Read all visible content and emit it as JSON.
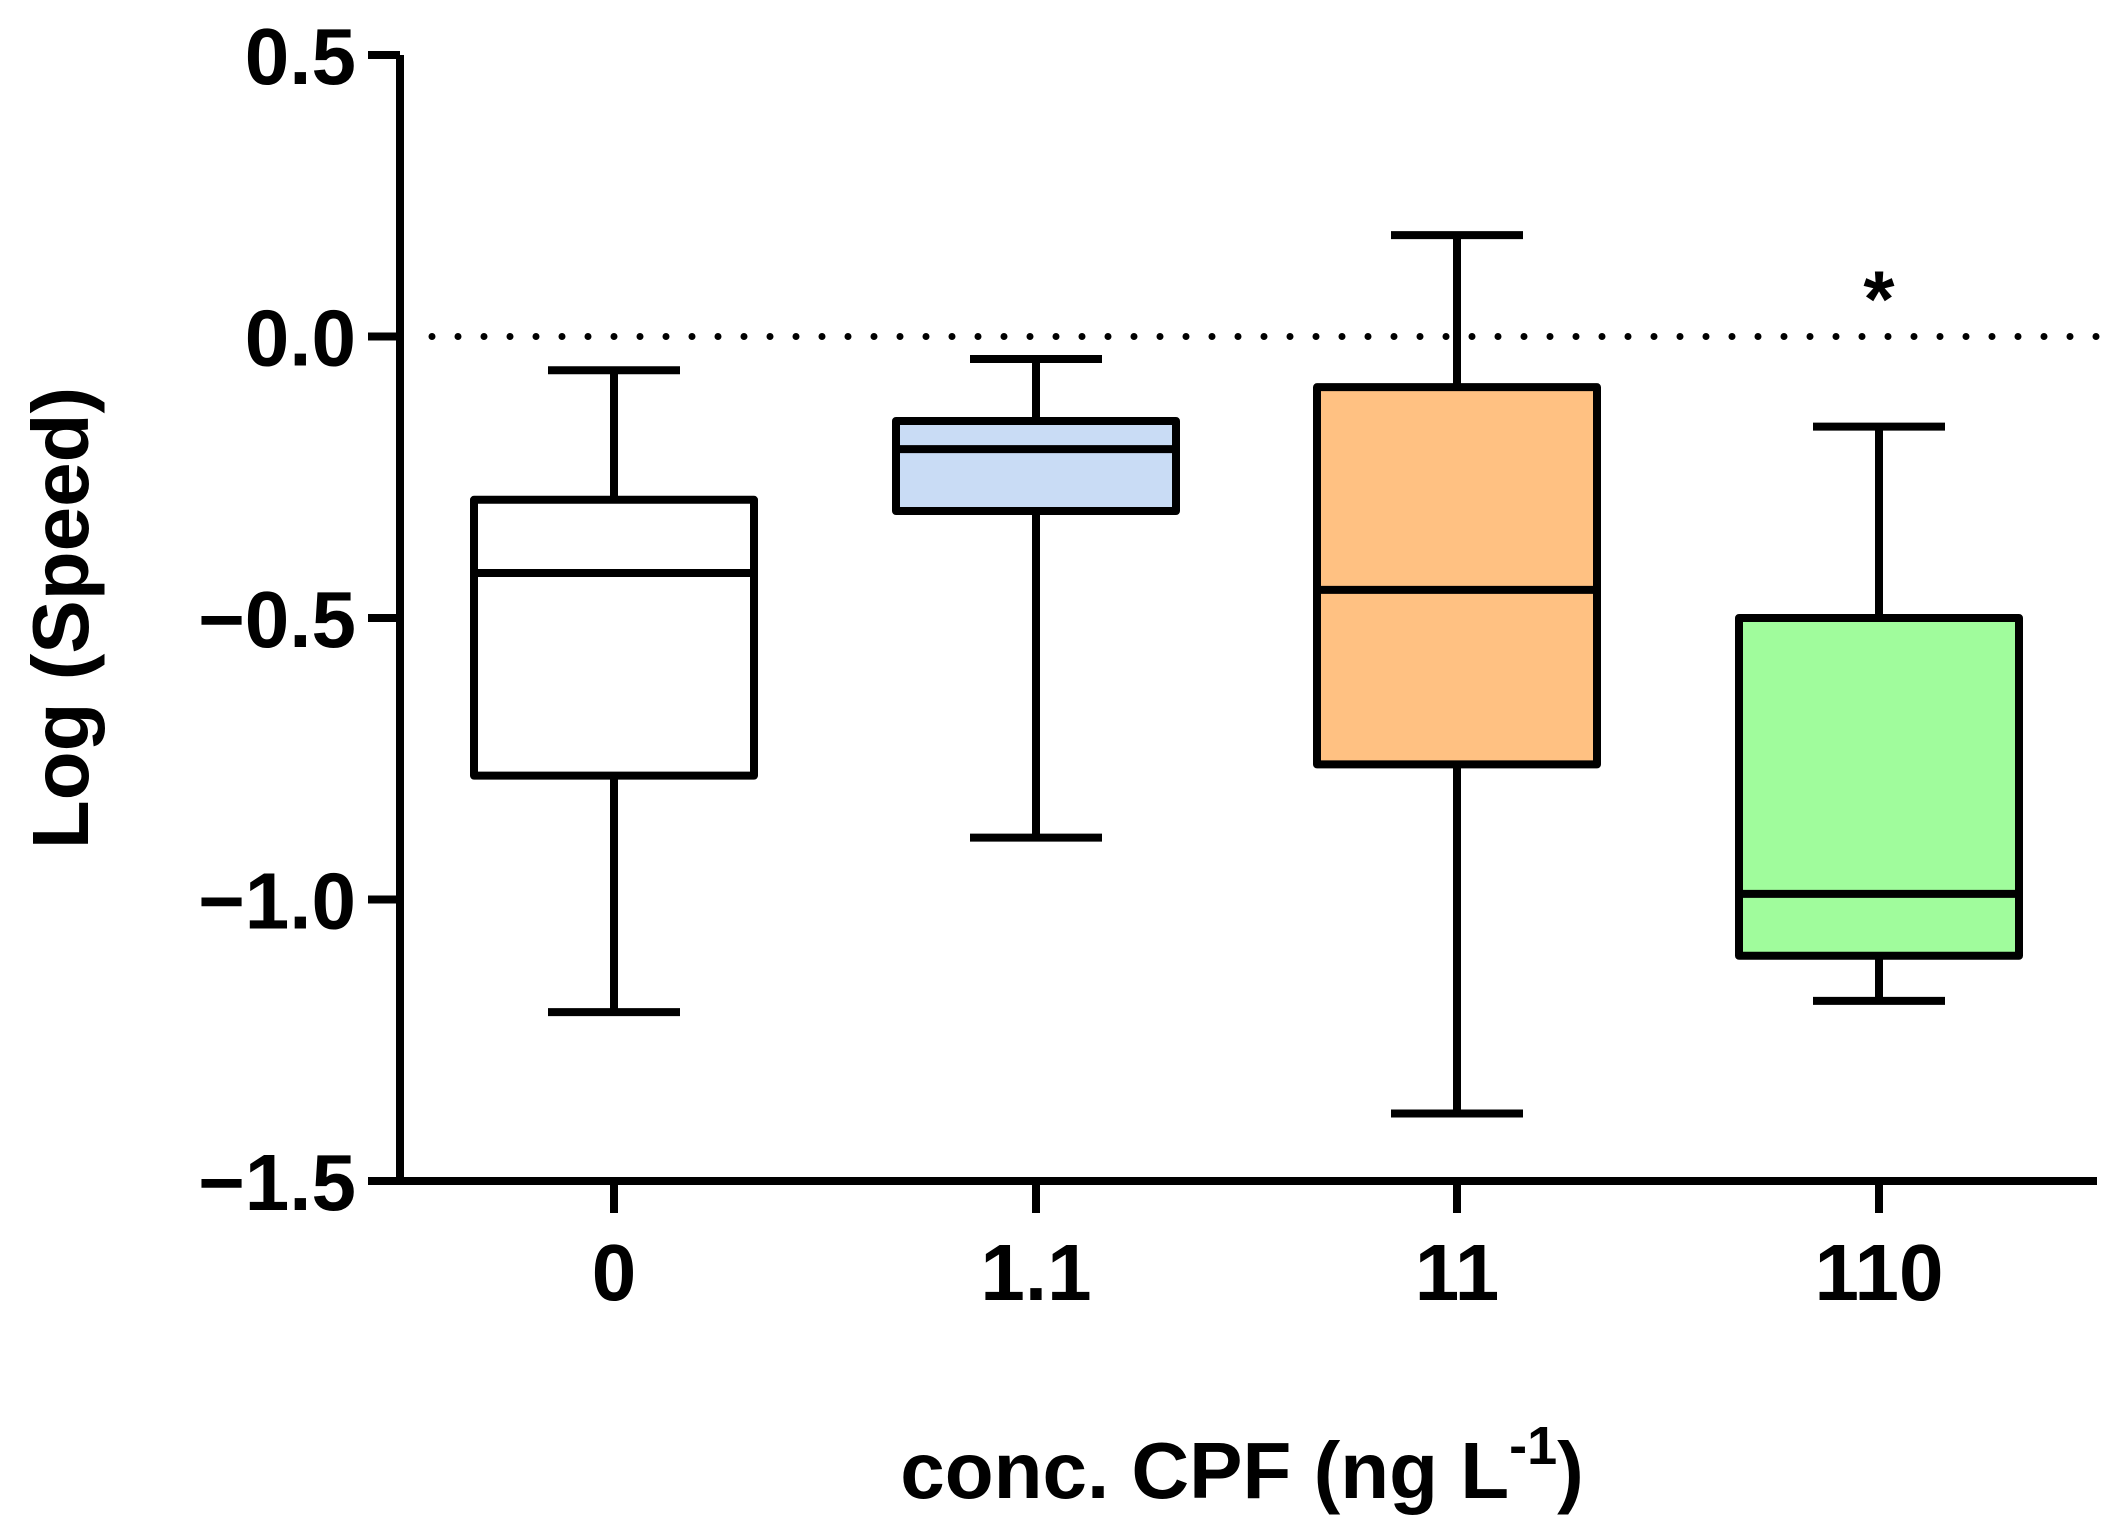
{
  "chart_data": {
    "type": "box",
    "title": "",
    "xlabel": "conc. CPF (ng L",
    "xlabel_superscript": "-1",
    "xlabel_suffix": ")",
    "ylabel": "Log (Speed)",
    "ylim": [
      -1.5,
      0.5
    ],
    "yticks": [
      0.5,
      0.0,
      -0.5,
      -1.0,
      -1.5
    ],
    "ytick_labels": [
      "0.5",
      "0.0",
      "−0.5",
      "−1.0",
      "−1.5"
    ],
    "reference_line": 0.0,
    "categories": [
      "0",
      "1.1",
      "11",
      "110"
    ],
    "boxes": [
      {
        "category": "0",
        "min": -1.2,
        "q1": -0.78,
        "median": -0.42,
        "q3": -0.29,
        "max": -0.06,
        "color": "#ffffff",
        "annotation": ""
      },
      {
        "category": "1.1",
        "min": -0.89,
        "q1": -0.31,
        "median": -0.2,
        "q3": -0.15,
        "max": -0.04,
        "color": "#c9dcf5",
        "annotation": ""
      },
      {
        "category": "11",
        "min": -1.38,
        "q1": -0.76,
        "median": -0.45,
        "q3": -0.09,
        "max": 0.18,
        "color": "#ffc182",
        "annotation": ""
      },
      {
        "category": "110",
        "min": -1.18,
        "q1": -1.1,
        "median": -0.99,
        "q3": -0.5,
        "max": -0.16,
        "color": "#a0fc9c",
        "annotation": "*"
      }
    ]
  }
}
